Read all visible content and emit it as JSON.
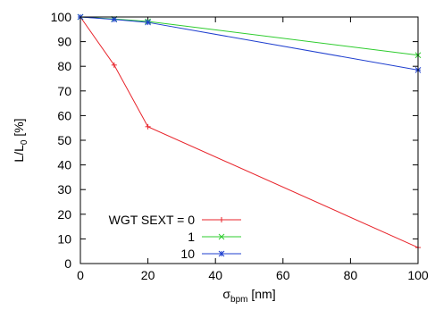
{
  "chart_data": {
    "type": "line",
    "title": "",
    "ylabel": {
      "main": "L/L",
      "sub": "0",
      "suffix": " [%]"
    },
    "xlabel": {
      "main": "σ",
      "sub": "bpm",
      "suffix": " [nm]"
    },
    "xlim": [
      0,
      100
    ],
    "ylim": [
      0,
      100
    ],
    "x_ticks": [
      "0",
      "20",
      "40",
      "60",
      "80",
      "100"
    ],
    "y_ticks": [
      "0",
      "10",
      "20",
      "30",
      "40",
      "50",
      "60",
      "70",
      "80",
      "90",
      "100"
    ],
    "grid": false,
    "legend_position": "bottom-left",
    "series": [
      {
        "name": "WGT SEXT = 0",
        "color": "#e8232a",
        "marker": "plus",
        "x": [
          0,
          10,
          20,
          100
        ],
        "y": [
          100,
          80.5,
          55.5,
          6.5
        ]
      },
      {
        "name": "1",
        "color": "#2ecc2e",
        "marker": "cross",
        "x": [
          0,
          10,
          20,
          100
        ],
        "y": [
          100,
          99.2,
          98.2,
          84.5
        ]
      },
      {
        "name": "10",
        "color": "#1f3fcf",
        "marker": "star",
        "x": [
          0,
          10,
          20,
          100
        ],
        "y": [
          100,
          99,
          97.8,
          78.5
        ]
      }
    ]
  }
}
